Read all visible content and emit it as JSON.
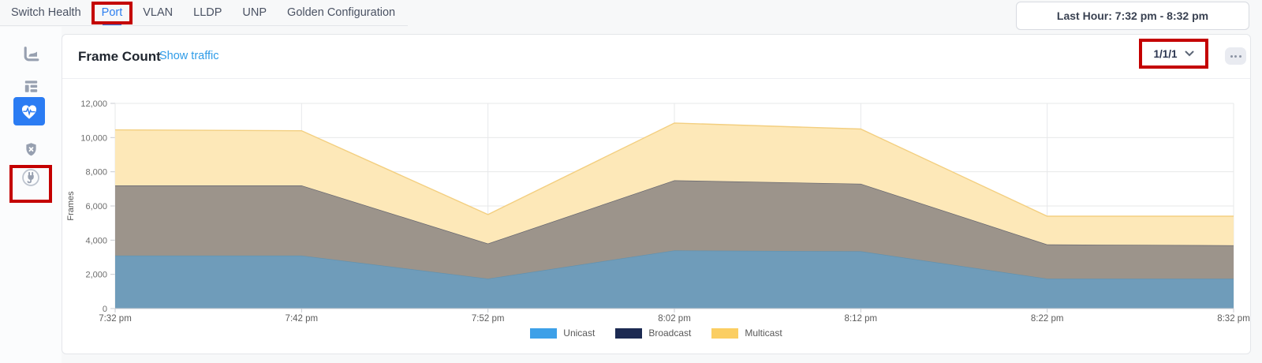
{
  "tabs": {
    "items": [
      {
        "label": "Switch Health",
        "active": false,
        "annotated": false
      },
      {
        "label": "Port",
        "active": true,
        "annotated": true
      },
      {
        "label": "VLAN",
        "active": false,
        "annotated": false
      },
      {
        "label": "LLDP",
        "active": false,
        "annotated": false
      },
      {
        "label": "UNP",
        "active": false,
        "annotated": false
      },
      {
        "label": "Golden Configuration",
        "active": false,
        "annotated": false
      }
    ]
  },
  "time_range": {
    "label": "Last Hour: 7:32 pm - 8:32 pm"
  },
  "sidebar": {
    "items": [
      {
        "icon": "area-chart-icon",
        "active": false
      },
      {
        "icon": "layout-list-icon",
        "active": false
      },
      {
        "icon": "heart-pulse-icon",
        "active": true,
        "annotated": true
      },
      {
        "icon": "shield-x-icon",
        "active": false
      },
      {
        "icon": "plug-icon",
        "active": false
      }
    ],
    "active_color": "#2b7cf3",
    "icon_color": "#97a0b0"
  },
  "panel": {
    "title": "Frame Count",
    "action_link": "Show traffic",
    "port_selector": {
      "value": "1/1/1",
      "annotated": true
    },
    "menu_button": "ellipsis"
  },
  "annotation_color": "#c40000",
  "chart_data": {
    "type": "area",
    "stacked": true,
    "title": "Frame Count",
    "xlabel": "",
    "ylabel": "Frames",
    "ylim": [
      0,
      12000
    ],
    "y_tick_step": 2000,
    "grid": true,
    "legend_position": "bottom",
    "categories": [
      "7:32 pm",
      "7:42 pm",
      "7:52 pm",
      "8:02 pm",
      "8:12 pm",
      "8:22 pm",
      "8:32 pm"
    ],
    "series": [
      {
        "name": "Unicast",
        "legend_color": "#3da0e8",
        "fill": "#6f9cba",
        "edge": "#6292af",
        "values": [
          3100,
          3100,
          1750,
          3400,
          3350,
          1750,
          1750
        ]
      },
      {
        "name": "Broadcast",
        "legend_color": "#1c2a52",
        "fill": "#9c948b",
        "edge": "#63646e",
        "values": [
          4100,
          4100,
          2050,
          4100,
          3950,
          2000,
          1950
        ]
      },
      {
        "name": "Multicast",
        "legend_color": "#fbce62",
        "fill": "#fde8b8",
        "edge": "#f3cf80",
        "values": [
          3250,
          3200,
          1700,
          3350,
          3200,
          1650,
          1700
        ]
      }
    ],
    "grid_color": "#e7e8ea",
    "axis_color": "#c8cbd0"
  }
}
